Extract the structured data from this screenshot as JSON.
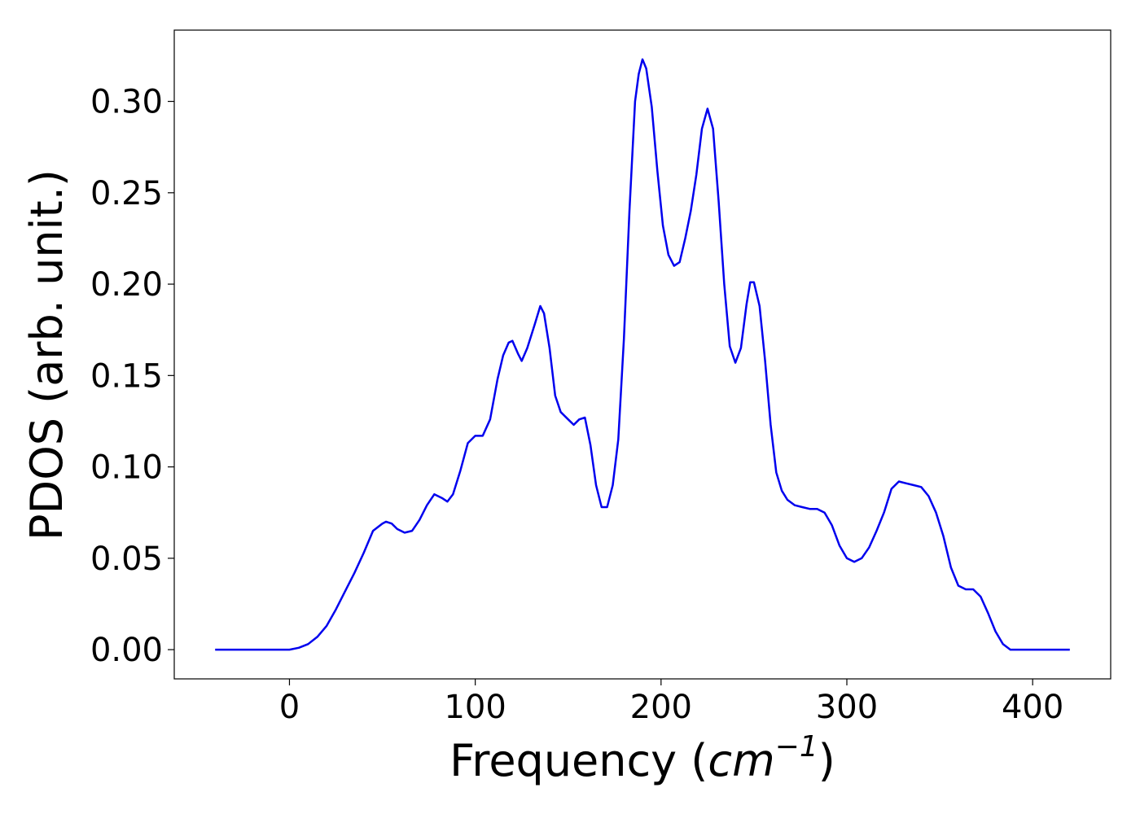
{
  "chart_data": {
    "type": "line",
    "title": "",
    "xlabel_main": "Frequency (",
    "xlabel_unit": "cm",
    "xlabel_exp": "−1",
    "xlabel_close": ")",
    "ylabel": "PDOS (arb. unit.)",
    "xlim": [
      -62,
      442
    ],
    "ylim": [
      -0.016,
      0.339
    ],
    "xticks": [
      0,
      100,
      200,
      300,
      400
    ],
    "xtick_labels": [
      "0",
      "100",
      "200",
      "300",
      "400"
    ],
    "yticks": [
      0.0,
      0.05,
      0.1,
      0.15,
      0.2,
      0.25,
      0.3
    ],
    "ytick_labels": [
      "0.00",
      "0.05",
      "0.10",
      "0.15",
      "0.20",
      "0.25",
      "0.30"
    ],
    "grid": false,
    "legend": "none",
    "series": [
      {
        "color": "#0000ee",
        "x": [
          -40,
          0,
          5,
          10,
          15,
          20,
          25,
          30,
          35,
          40,
          45,
          50,
          52,
          55,
          58,
          62,
          66,
          70,
          74,
          78,
          82,
          85,
          88,
          92,
          96,
          100,
          104,
          108,
          112,
          115,
          118,
          120,
          123,
          125,
          128,
          132,
          135,
          137,
          140,
          143,
          146,
          150,
          153,
          156,
          159,
          162,
          165,
          168,
          171,
          174,
          177,
          180,
          183,
          186,
          188,
          190,
          192,
          195,
          198,
          201,
          204,
          207,
          210,
          213,
          216,
          219,
          222,
          225,
          228,
          231,
          234,
          237,
          240,
          243,
          246,
          248,
          250,
          253,
          256,
          259,
          262,
          265,
          268,
          272,
          276,
          280,
          284,
          288,
          292,
          296,
          300,
          304,
          308,
          312,
          316,
          320,
          324,
          328,
          332,
          336,
          340,
          344,
          348,
          352,
          356,
          360,
          364,
          368,
          372,
          376,
          380,
          384,
          388,
          392,
          400,
          420
        ],
        "y": [
          0.0,
          0.0,
          0.001,
          0.003,
          0.007,
          0.013,
          0.022,
          0.032,
          0.042,
          0.053,
          0.065,
          0.069,
          0.07,
          0.069,
          0.066,
          0.064,
          0.065,
          0.071,
          0.079,
          0.085,
          0.083,
          0.081,
          0.085,
          0.098,
          0.113,
          0.117,
          0.117,
          0.126,
          0.148,
          0.161,
          0.168,
          0.169,
          0.162,
          0.158,
          0.165,
          0.178,
          0.188,
          0.184,
          0.165,
          0.139,
          0.13,
          0.126,
          0.123,
          0.126,
          0.127,
          0.112,
          0.09,
          0.078,
          0.078,
          0.09,
          0.115,
          0.17,
          0.24,
          0.3,
          0.315,
          0.323,
          0.318,
          0.297,
          0.262,
          0.232,
          0.216,
          0.21,
          0.212,
          0.225,
          0.24,
          0.26,
          0.285,
          0.296,
          0.285,
          0.245,
          0.2,
          0.166,
          0.157,
          0.165,
          0.189,
          0.201,
          0.201,
          0.188,
          0.158,
          0.123,
          0.097,
          0.087,
          0.082,
          0.079,
          0.078,
          0.077,
          0.077,
          0.075,
          0.068,
          0.057,
          0.05,
          0.048,
          0.05,
          0.056,
          0.065,
          0.075,
          0.088,
          0.092,
          0.091,
          0.09,
          0.089,
          0.084,
          0.075,
          0.062,
          0.045,
          0.035,
          0.033,
          0.033,
          0.029,
          0.02,
          0.01,
          0.003,
          0.0,
          0.0,
          0.0,
          0.0
        ]
      }
    ]
  }
}
